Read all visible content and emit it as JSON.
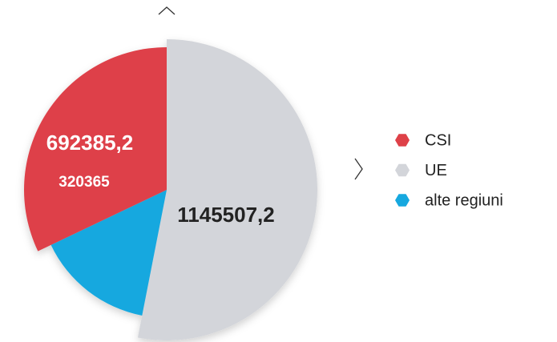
{
  "chart_data": {
    "type": "pie",
    "categories": [
      "UE",
      "alte regiuni",
      "CSI"
    ],
    "values": [
      1145507.2,
      320365,
      692385.2
    ],
    "value_labels": [
      "1145507,2",
      "320365",
      "692385,2"
    ],
    "colors": [
      "#d3d5da",
      "#16a8df",
      "#de4148"
    ],
    "legend_order": [
      2,
      0,
      1
    ]
  }
}
